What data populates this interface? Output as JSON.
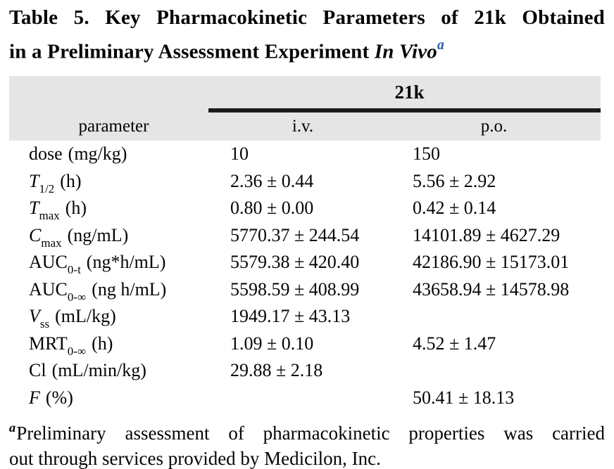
{
  "title": {
    "line1": "Table 5. Key Pharmacokinetic Parameters of 21k Obtained",
    "line2_text": "in a Preliminary Assessment Experiment ",
    "line2_italic": "In Vivo",
    "footnote_marker": "a"
  },
  "table": {
    "group_header": "21k",
    "columns": {
      "parameter": "parameter",
      "iv": "i.v.",
      "po": "p.o."
    },
    "rows": [
      {
        "label": {
          "base": "dose",
          "italic": false,
          "sub": "",
          "unit": "(mg/kg)"
        },
        "iv": "10",
        "po": "150"
      },
      {
        "label": {
          "base": "T",
          "italic": true,
          "sub": "1/2",
          "unit": "(h)"
        },
        "iv": "2.36 ± 0.44",
        "po": "5.56 ± 2.92"
      },
      {
        "label": {
          "base": "T",
          "italic": true,
          "sub": "max",
          "unit": "(h)"
        },
        "iv": "0.80 ± 0.00",
        "po": "0.42 ± 0.14"
      },
      {
        "label": {
          "base": "C",
          "italic": true,
          "sub": "max",
          "unit": "(ng/mL)"
        },
        "iv": "5770.37 ± 244.54",
        "po": "14101.89 ± 4627.29"
      },
      {
        "label": {
          "base": "AUC",
          "italic": false,
          "sub": "0-t",
          "unit": "(ng*h/mL)"
        },
        "iv": "5579.38 ± 420.40",
        "po": "42186.90 ± 15173.01"
      },
      {
        "label": {
          "base": "AUC",
          "italic": false,
          "sub": "0-∞",
          "unit": "(ng h/mL)"
        },
        "iv": "5598.59 ± 408.99",
        "po": "43658.94 ± 14578.98"
      },
      {
        "label": {
          "base": "V",
          "italic": true,
          "sub": "ss",
          "unit": "(mL/kg)"
        },
        "iv": "1949.17 ± 43.13",
        "po": ""
      },
      {
        "label": {
          "base": "MRT",
          "italic": false,
          "sub": "0-∞",
          "unit": "(h)"
        },
        "iv": "1.09 ± 0.10",
        "po": "4.52 ± 1.47"
      },
      {
        "label": {
          "base": "Cl",
          "italic": false,
          "sub": "",
          "unit": "(mL/min/kg)"
        },
        "iv": "29.88 ± 2.18",
        "po": ""
      },
      {
        "label": {
          "base": "F",
          "italic": true,
          "sub": "",
          "unit": "(%)"
        },
        "iv": "",
        "po": "50.41 ± 18.13"
      }
    ]
  },
  "footnote": {
    "marker": "a",
    "line1": "Preliminary assessment of pharmacokinetic properties was carried",
    "line2": "out through services provided by Medicilon, Inc."
  },
  "colors": {
    "header_bg": "#e5e5e5",
    "rule": "#1c1c1c",
    "marker_blue": "#2b5ca8",
    "text": "#050505"
  }
}
